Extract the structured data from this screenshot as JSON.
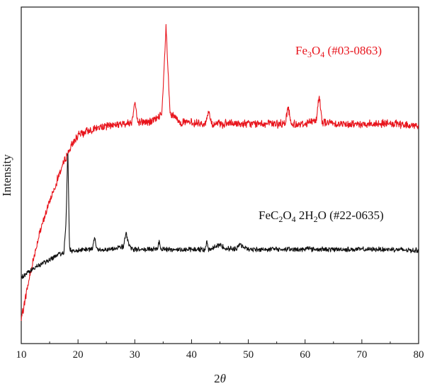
{
  "chart_data": {
    "type": "line",
    "xlabel_prefix": "2",
    "xlabel_symbol": "θ",
    "ylabel": "Intensity",
    "xlim": [
      10,
      80
    ],
    "xticks": [
      10,
      20,
      30,
      40,
      50,
      60,
      70,
      80
    ],
    "y_tick_labels": false,
    "grid": false,
    "legend": "none",
    "series": [
      {
        "label_parts": [
          {
            "t": "Fe",
            "sub": false
          },
          {
            "t": "3",
            "sub": true
          },
          {
            "t": "O",
            "sub": false
          },
          {
            "t": "4",
            "sub": true
          },
          {
            "t": " (#03-0863)",
            "sub": false
          }
        ],
        "color": "#e8141c",
        "noise": 0.03,
        "x": [
          10,
          11,
          12,
          13,
          14,
          15,
          16,
          17,
          18,
          19,
          20,
          22,
          25,
          28,
          29.5,
          30,
          30.5,
          33,
          34.8,
          35.5,
          36.2,
          38,
          42.5,
          43,
          43.5,
          50,
          56.5,
          57,
          57.5,
          60,
          62,
          62.5,
          63,
          66,
          70,
          75,
          80
        ],
        "y": [
          0.6,
          1.35,
          2.05,
          2.65,
          3.15,
          3.6,
          4.0,
          4.4,
          4.75,
          5.05,
          5.25,
          5.4,
          5.5,
          5.55,
          5.6,
          6.15,
          5.6,
          5.6,
          5.8,
          8.0,
          5.8,
          5.6,
          5.55,
          5.9,
          5.55,
          5.55,
          5.55,
          6.0,
          5.55,
          5.55,
          5.65,
          6.3,
          5.6,
          5.55,
          5.55,
          5.55,
          5.5
        ]
      },
      {
        "label_parts": [
          {
            "t": "FeC",
            "sub": false
          },
          {
            "t": "2",
            "sub": true
          },
          {
            "t": "O",
            "sub": false
          },
          {
            "t": "4",
            "sub": true
          },
          {
            "t": " 2H",
            "sub": false
          },
          {
            "t": "2",
            "sub": true
          },
          {
            "t": "O (#22-0635)",
            "sub": false
          }
        ],
        "color": "#111111",
        "noise": 0.018,
        "x": [
          10,
          11,
          12,
          14,
          16,
          17.5,
          17.9,
          18.2,
          18.5,
          19,
          20,
          22.5,
          22.9,
          23.3,
          25,
          28,
          28.5,
          29,
          30,
          34,
          34.3,
          34.6,
          38,
          42.4,
          42.7,
          43,
          44.8,
          45.2,
          46,
          48,
          48.3,
          50,
          55,
          60,
          60.5,
          61,
          65,
          70,
          75,
          80
        ],
        "y": [
          1.65,
          1.78,
          1.88,
          2.05,
          2.2,
          2.3,
          3.1,
          5.0,
          2.4,
          2.32,
          2.35,
          2.38,
          2.7,
          2.38,
          2.38,
          2.45,
          2.8,
          2.45,
          2.38,
          2.38,
          2.62,
          2.38,
          2.38,
          2.38,
          2.58,
          2.38,
          2.48,
          2.48,
          2.4,
          2.4,
          2.5,
          2.38,
          2.38,
          2.38,
          2.45,
          2.38,
          2.38,
          2.38,
          2.38,
          2.35
        ]
      }
    ]
  }
}
